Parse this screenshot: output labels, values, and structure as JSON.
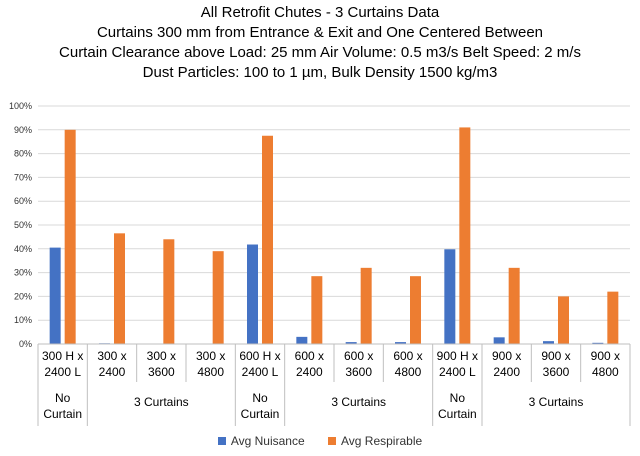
{
  "chart_data": {
    "type": "bar",
    "title_lines": [
      "All Retrofit Chutes - 3 Curtains Data",
      "Curtains 300 mm from Entrance & Exit and One Centered Between",
      "Curtain Clearance above Load: 25 mm  Air Volume:  0.5 m3/s  Belt Speed: 2 m/s",
      "Dust Particles: 100 to 1 µm, Bulk Density 1500 kg/m3"
    ],
    "categories": [
      [
        "300 H x",
        "2400 L"
      ],
      [
        "300 x",
        "2400"
      ],
      [
        "300 x",
        "3600"
      ],
      [
        "300 x",
        "4800"
      ],
      [
        "600 H x",
        "2400 L"
      ],
      [
        "600 x",
        "2400"
      ],
      [
        "600 x",
        "3600"
      ],
      [
        "600 x",
        "4800"
      ],
      [
        "900 H x",
        "2400 L"
      ],
      [
        "900 x",
        "2400"
      ],
      [
        "900 x",
        "3600"
      ],
      [
        "900 x",
        "4800"
      ]
    ],
    "groups": [
      {
        "label": [
          "No",
          "Curtain"
        ],
        "start": 0,
        "end": 0
      },
      {
        "label": [
          "3 Curtains"
        ],
        "start": 1,
        "end": 3
      },
      {
        "label": [
          "No",
          "Curtain"
        ],
        "start": 4,
        "end": 4
      },
      {
        "label": [
          "3 Curtains"
        ],
        "start": 5,
        "end": 7
      },
      {
        "label": [
          "No",
          "Curtain"
        ],
        "start": 8,
        "end": 8
      },
      {
        "label": [
          "3 Curtains"
        ],
        "start": 9,
        "end": 11
      }
    ],
    "series": [
      {
        "name": "Avg Nuisance",
        "color": "#4472C4",
        "values": [
          40.5,
          0.3,
          0,
          0,
          41.8,
          3,
          0.8,
          0.8,
          39.8,
          2.8,
          1.2,
          0.5
        ]
      },
      {
        "name": "Avg Respirable",
        "color": "#ED7D31",
        "values": [
          90,
          46.5,
          44,
          39,
          87.5,
          28.5,
          32,
          28.5,
          91,
          32,
          20,
          22
        ]
      }
    ],
    "ylim": [
      0,
      100
    ],
    "yticks": [
      "0%",
      "10%",
      "20%",
      "30%",
      "40%",
      "50%",
      "60%",
      "70%",
      "80%",
      "90%",
      "100%"
    ],
    "grid": true,
    "legend_position": "bottom"
  }
}
